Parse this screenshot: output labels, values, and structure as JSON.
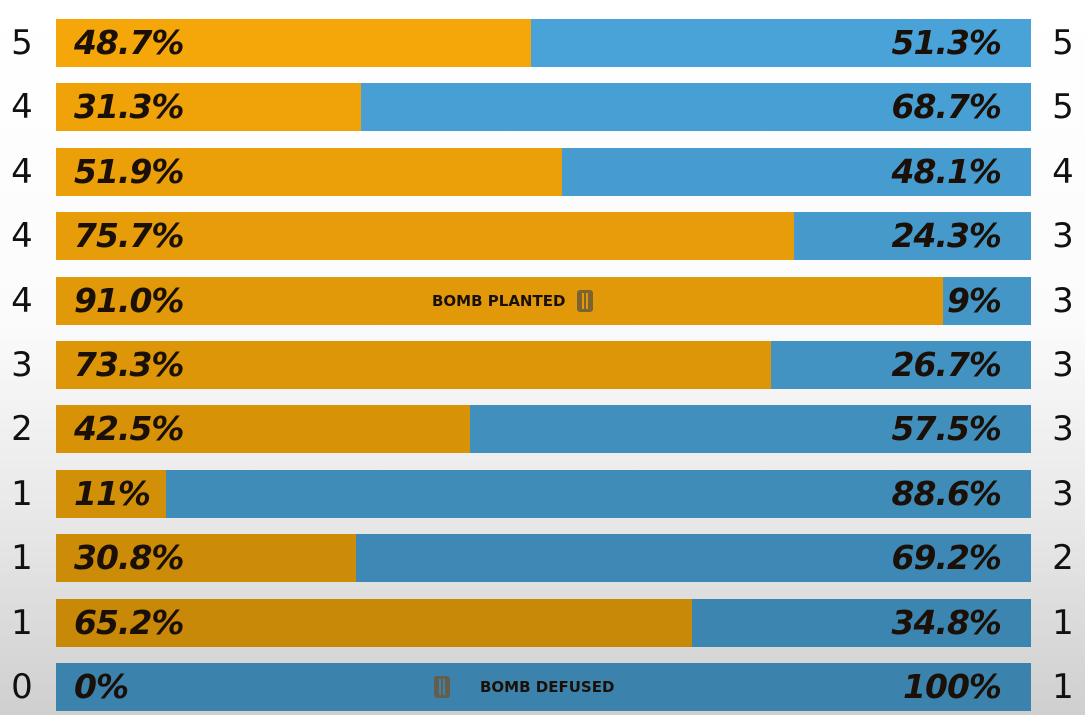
{
  "chart_data": {
    "type": "bar",
    "stacked": true,
    "orientation": "horizontal",
    "title": "",
    "series_colors": {
      "left": "#f5a70a",
      "right": "#4aa3d8"
    },
    "rows": [
      {
        "left_score": "5",
        "left_pct": "48.7%",
        "right_pct": "51.3%",
        "right_score": "5",
        "left_value": 48.7,
        "event": null
      },
      {
        "left_score": "4",
        "left_pct": "31.3%",
        "right_pct": "68.7%",
        "right_score": "5",
        "left_value": 31.3,
        "event": null
      },
      {
        "left_score": "4",
        "left_pct": "51.9%",
        "right_pct": "48.1%",
        "right_score": "4",
        "left_value": 51.9,
        "event": null
      },
      {
        "left_score": "4",
        "left_pct": "75.7%",
        "right_pct": "24.3%",
        "right_score": "3",
        "left_value": 75.7,
        "event": null
      },
      {
        "left_score": "4",
        "left_pct": "91.0%",
        "right_pct": "9%",
        "right_score": "3",
        "left_value": 91.0,
        "event": "BOMB PLANTED"
      },
      {
        "left_score": "3",
        "left_pct": "73.3%",
        "right_pct": "26.7%",
        "right_score": "3",
        "left_value": 73.3,
        "event": null
      },
      {
        "left_score": "2",
        "left_pct": "42.5%",
        "right_pct": "57.5%",
        "right_score": "3",
        "left_value": 42.5,
        "event": null
      },
      {
        "left_score": "1",
        "left_pct": "11%",
        "right_pct": "88.6%",
        "right_score": "3",
        "left_value": 11.3,
        "event": null
      },
      {
        "left_score": "1",
        "left_pct": "30.8%",
        "right_pct": "69.2%",
        "right_score": "2",
        "left_value": 30.8,
        "event": null
      },
      {
        "left_score": "1",
        "left_pct": "65.2%",
        "right_pct": "34.8%",
        "right_score": "1",
        "left_value": 65.2,
        "event": null
      },
      {
        "left_score": "0",
        "left_pct": "0%",
        "right_pct": "100%",
        "right_score": "1",
        "left_value": 0,
        "event": "BOMB DEFUSED"
      }
    ]
  }
}
